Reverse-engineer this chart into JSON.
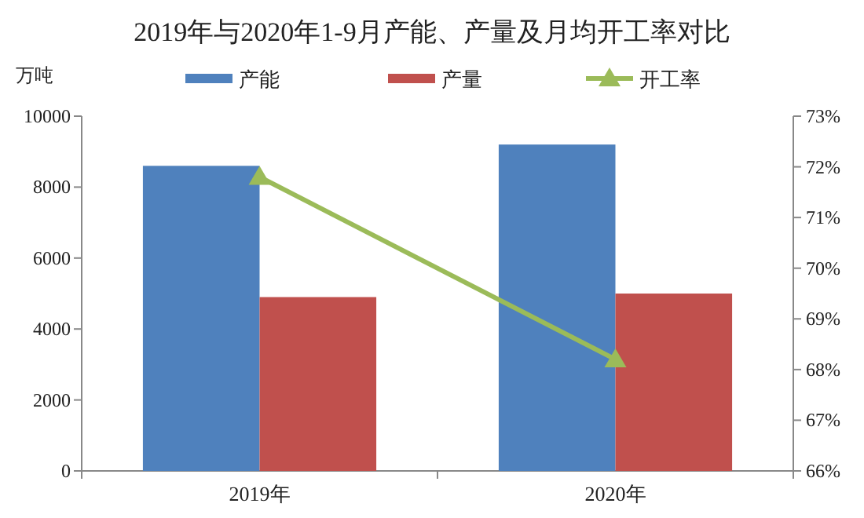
{
  "chart_data": {
    "type": "bar",
    "title": "2019年与2020年1-9月产能、产量及月均开工率对比",
    "ylabel": "万吨",
    "categories": [
      "2019年",
      "2020年"
    ],
    "series": [
      {
        "name": "产能",
        "color": "#4f81bd",
        "values": [
          8600,
          9200
        ]
      },
      {
        "name": "产量",
        "color": "#c0504d",
        "values": [
          4900,
          5000
        ]
      },
      {
        "name": "开工率",
        "type": "line",
        "axis": "y2",
        "color": "#9bbb59",
        "marker": "triangle",
        "values": [
          71.8,
          68.2
        ]
      }
    ],
    "ylim": [
      0,
      10000
    ],
    "yticks": [
      0,
      2000,
      4000,
      6000,
      8000,
      10000
    ],
    "y2lim": [
      66,
      73
    ],
    "y2ticks": [
      {
        "value": 66,
        "label": "66%"
      },
      {
        "value": 67,
        "label": "67%"
      },
      {
        "value": 68,
        "label": "68%"
      },
      {
        "value": 69,
        "label": "69%"
      },
      {
        "value": 70,
        "label": "70%"
      },
      {
        "value": 71,
        "label": "71%"
      },
      {
        "value": 72,
        "label": "72%"
      },
      {
        "value": 73,
        "label": "73%"
      }
    ],
    "legend": "top",
    "grid": false
  }
}
